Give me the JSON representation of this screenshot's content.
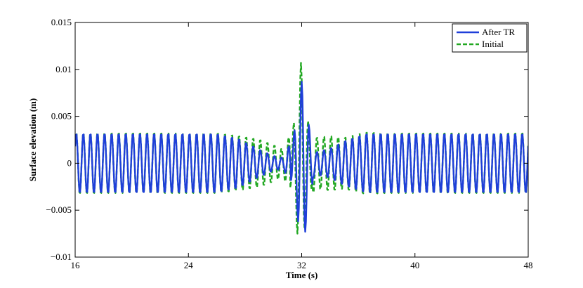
{
  "chart_data": {
    "type": "line",
    "title": "",
    "xlabel": "Time (s)",
    "ylabel": "Surface elevation (m)",
    "xlim": [
      16,
      48
    ],
    "ylim": [
      -0.01,
      0.015
    ],
    "x_ticks": [
      16,
      24,
      32,
      40,
      48
    ],
    "x_tick_labels": [
      "16",
      "24",
      "32",
      "40",
      "48"
    ],
    "y_ticks": [
      -0.01,
      -0.005,
      0,
      0.005,
      0.01,
      0.015
    ],
    "y_tick_labels": [
      "−0.01",
      "−0.005",
      "0",
      "0.005",
      "0.01",
      "0.015"
    ],
    "grid": false,
    "legend_position": "top-right",
    "sample_step_s": 0.05,
    "series": [
      {
        "name": "After TR",
        "color": "#1f3fd9",
        "line_style": "solid",
        "carrier_period_s": 0.5,
        "envelope": {
          "t": [
            16,
            26,
            27.5,
            29,
            30,
            30.7,
            31.2,
            31.5,
            31.8,
            32.0,
            32.2,
            32.5,
            33,
            34,
            35,
            36.5,
            38,
            48
          ],
          "amp": [
            0.0032,
            0.0032,
            0.0027,
            0.0015,
            0.0008,
            0.0006,
            0.0022,
            0.0045,
            0.008,
            0.0085,
            0.0055,
            0.0022,
            0.0012,
            0.0016,
            0.0024,
            0.0032,
            0.0032,
            0.0032
          ]
        },
        "spike": [
          {
            "t": 31.25,
            "y": -0.0018
          },
          {
            "t": 31.5,
            "y": 0.0035
          },
          {
            "t": 31.75,
            "y": -0.0062
          },
          {
            "t": 32.0,
            "y": 0.0087
          },
          {
            "t": 32.25,
            "y": -0.0073
          },
          {
            "t": 32.5,
            "y": 0.0041
          },
          {
            "t": 32.75,
            "y": -0.0022
          }
        ]
      },
      {
        "name": "Initial",
        "color": "#22a822",
        "line_style": "dashed",
        "carrier_period_s": 0.5,
        "envelope": {
          "t": [
            16,
            26,
            27.5,
            29,
            30,
            30.7,
            31.2,
            31.5,
            31.8,
            32.0,
            32.2,
            32.5,
            33,
            34,
            35,
            36.5,
            38,
            48
          ],
          "amp": [
            0.0033,
            0.0033,
            0.003,
            0.0026,
            0.002,
            0.0015,
            0.0032,
            0.005,
            0.008,
            0.0105,
            0.007,
            0.004,
            0.0028,
            0.003,
            0.0028,
            0.0034,
            0.0033,
            0.0033
          ]
        },
        "spike": [
          {
            "t": 31.2,
            "y": -0.0026
          },
          {
            "t": 31.45,
            "y": 0.0043
          },
          {
            "t": 31.7,
            "y": -0.0075
          },
          {
            "t": 31.95,
            "y": 0.0107
          },
          {
            "t": 32.2,
            "y": -0.007
          },
          {
            "t": 32.45,
            "y": 0.0045
          },
          {
            "t": 32.7,
            "y": -0.0028
          }
        ]
      }
    ]
  }
}
